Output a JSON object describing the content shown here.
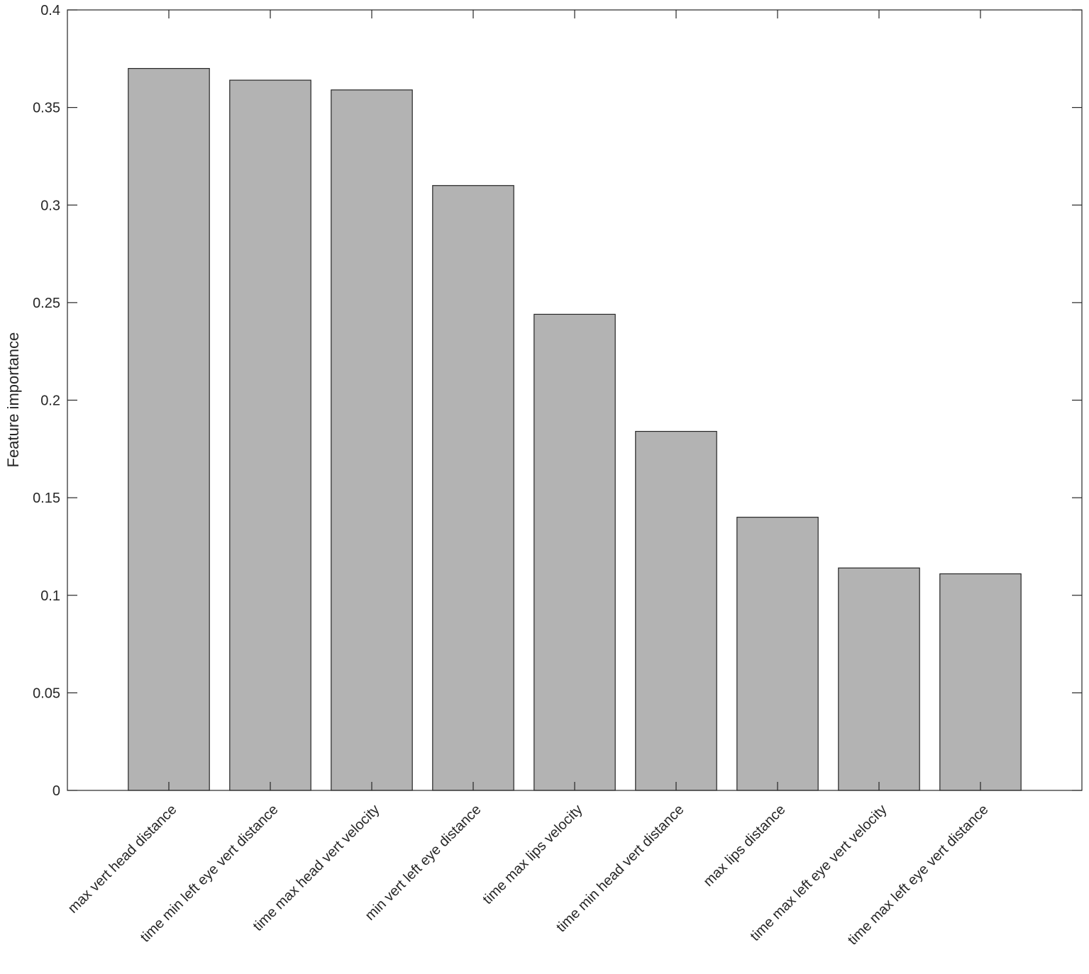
{
  "chart_data": {
    "type": "bar",
    "title": "",
    "xlabel": "",
    "ylabel": "Feature importance",
    "ylim": [
      0,
      0.4
    ],
    "yticks": [
      "0",
      "0.05",
      "0.1",
      "0.15",
      "0.2",
      "0.25",
      "0.3",
      "0.35",
      "0.4"
    ],
    "categories": [
      "max vert head distance",
      "time min left eye vert distance",
      "time max head vert velocity",
      "min vert left eye distance",
      "time max lips velocity",
      "time min head vert distance",
      "max lips distance",
      "time max left eye vert velocity",
      "time max left eye vert distance"
    ],
    "values": [
      0.37,
      0.364,
      0.359,
      0.31,
      0.244,
      0.184,
      0.14,
      0.114,
      0.111
    ],
    "bar_color": "#b3b3b3",
    "edge_color": "#262626",
    "grid": false,
    "legend": "none"
  }
}
